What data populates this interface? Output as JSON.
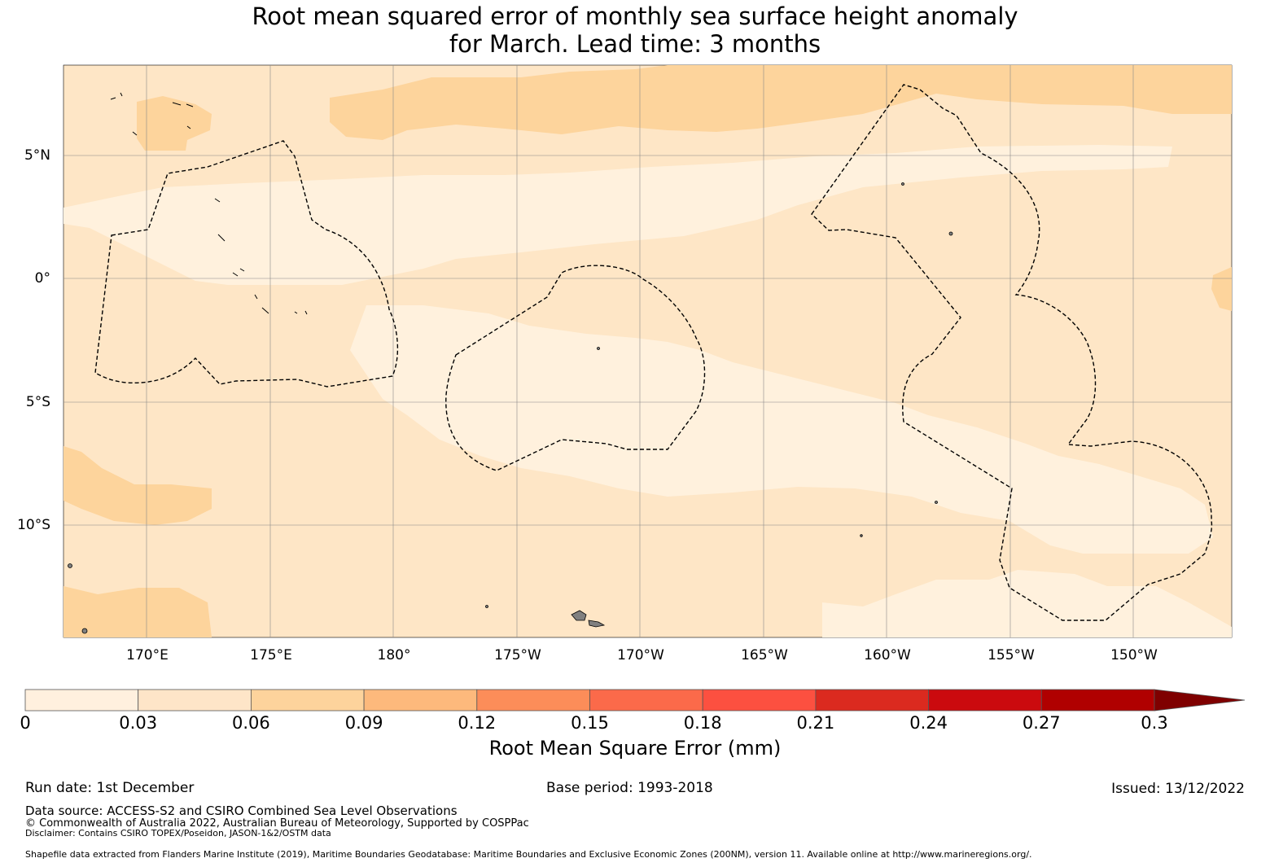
{
  "title_line1": "Root mean squared error of monthly sea surface height anomaly",
  "title_line2": "for March. Lead time: 3 months",
  "map": {
    "lat_labels": [
      "5°N",
      "0°",
      "5°S",
      "10°S"
    ],
    "lon_labels": [
      "170°E",
      "175°E",
      "180°",
      "175°W",
      "170°W",
      "165°W",
      "160°W",
      "155°W",
      "150°W"
    ],
    "colors": {
      "ocean_lowest": "#fff1dd",
      "ocean_low": "#fee6c6",
      "ocean_mid": "#fdd49c",
      "land": "#808080",
      "eez_line": "#000000",
      "grid": "#888888"
    }
  },
  "colorbar": {
    "ticks": [
      "0",
      "0.03",
      "0.06",
      "0.09",
      "0.12",
      "0.15",
      "0.18",
      "0.21",
      "0.24",
      "0.27",
      "0.3"
    ],
    "colors": [
      "#fff0de",
      "#fee5c8",
      "#fdd39c",
      "#fdb97c",
      "#fc8d59",
      "#fb6a4a",
      "#fc5040",
      "#db2a1f",
      "#cb0a0e",
      "#b00000"
    ],
    "extend_color": "#7f0000",
    "label": "Root Mean Square Error (mm)"
  },
  "footer": {
    "run_date": "Run date: 1st December",
    "base_period": "Base period: 1993-2018",
    "issued": "Issued: 13/12/2022",
    "data_source": "Data source: ACCESS-S2 and CSIRO Combined Sea Level Observations",
    "copyright": "© Commonwealth of Australia 2022, Australian Bureau of Meteorology, Supported by COSPPac",
    "disclaimer": "Disclaimer: Contains CSIRO TOPEX/Poseidon, JASON-1&2/OSTM data",
    "shapefile": "Shapefile data extracted from Flanders Marine Institute (2019), Maritime Boundaries Geodatabase: Maritime Boundaries and Exclusive Economic Zones (200NM), version 11. Available online at http://www.marineregions.org/."
  }
}
